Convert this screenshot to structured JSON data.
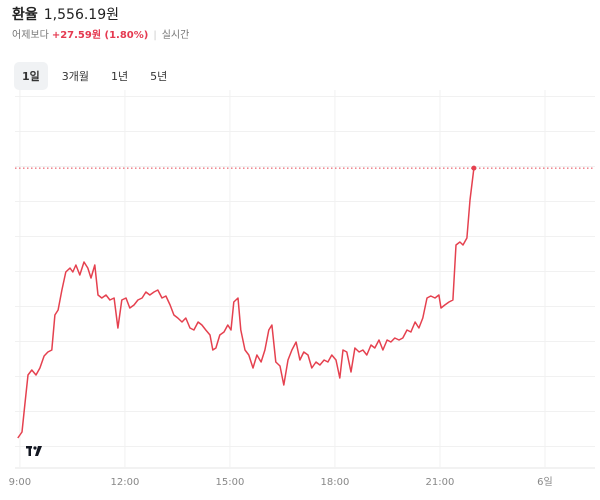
{
  "header": {
    "title": "환율",
    "price": "1,556.19원",
    "compare_label": "어제보다",
    "change": "+27.59원 (1.80%)",
    "realtime": "실시간"
  },
  "tabs": [
    "1일",
    "3개월",
    "1년",
    "5년"
  ],
  "chart_data": {
    "type": "line",
    "color": "#e5414f",
    "grid": true,
    "xlim": [
      8.86,
      25.43
    ],
    "ylim": [
      1528,
      1564
    ],
    "xticks": [
      {
        "value": 9,
        "label": "9:00"
      },
      {
        "value": 12,
        "label": "12:00"
      },
      {
        "value": 15,
        "label": "15:00"
      },
      {
        "value": 18,
        "label": "18:00"
      },
      {
        "value": 21,
        "label": "21:00"
      },
      {
        "value": 24,
        "label": "6일"
      }
    ],
    "x": [
      8.94,
      9.06,
      9.14,
      9.23,
      9.34,
      9.46,
      9.57,
      9.69,
      9.8,
      9.91,
      10.0,
      10.09,
      10.2,
      10.31,
      10.43,
      10.51,
      10.6,
      10.71,
      10.83,
      10.94,
      11.03,
      11.14,
      11.23,
      11.34,
      11.46,
      11.57,
      11.69,
      11.8,
      11.91,
      12.03,
      12.14,
      12.26,
      12.37,
      12.49,
      12.6,
      12.71,
      12.83,
      12.94,
      13.06,
      13.17,
      13.29,
      13.4,
      13.51,
      13.63,
      13.74,
      13.86,
      13.97,
      14.09,
      14.2,
      14.31,
      14.43,
      14.51,
      14.6,
      14.71,
      14.83,
      14.94,
      15.03,
      15.11,
      15.23,
      15.31,
      15.43,
      15.54,
      15.66,
      15.77,
      15.89,
      16.0,
      16.11,
      16.2,
      16.31,
      16.43,
      16.54,
      16.66,
      16.77,
      16.89,
      17.0,
      17.11,
      17.23,
      17.34,
      17.46,
      17.57,
      17.69,
      17.8,
      17.91,
      18.03,
      18.14,
      18.23,
      18.34,
      18.46,
      18.57,
      18.69,
      18.8,
      18.91,
      19.03,
      19.14,
      19.26,
      19.37,
      19.49,
      19.6,
      19.71,
      19.83,
      19.94,
      20.06,
      20.17,
      20.29,
      20.4,
      20.51,
      20.63,
      20.74,
      20.86,
      20.97,
      21.03,
      21.14,
      21.26,
      21.37,
      21.46,
      21.57,
      21.66,
      21.77,
      21.86,
      21.97
    ],
    "values": [
      1529.2,
      1529.8,
      1532.5,
      1535.5,
      1536.0,
      1535.5,
      1536.2,
      1537.4,
      1537.8,
      1538.0,
      1541.5,
      1542.0,
      1544.0,
      1545.8,
      1546.2,
      1545.8,
      1546.5,
      1545.5,
      1546.8,
      1546.2,
      1545.2,
      1546.5,
      1543.5,
      1543.2,
      1543.5,
      1543.0,
      1543.2,
      1540.2,
      1543.0,
      1543.2,
      1542.2,
      1542.5,
      1543.0,
      1543.2,
      1543.8,
      1543.5,
      1543.8,
      1544.0,
      1543.2,
      1543.4,
      1542.5,
      1541.5,
      1541.2,
      1540.8,
      1541.2,
      1540.2,
      1540.0,
      1540.8,
      1540.5,
      1540.0,
      1539.5,
      1538.0,
      1538.2,
      1539.5,
      1539.8,
      1540.5,
      1540.0,
      1542.8,
      1543.2,
      1540.0,
      1538.0,
      1537.5,
      1536.2,
      1537.5,
      1536.8,
      1538.0,
      1540.0,
      1540.5,
      1536.8,
      1536.4,
      1534.5,
      1537.0,
      1538.0,
      1538.8,
      1537.0,
      1537.8,
      1537.5,
      1536.2,
      1536.8,
      1536.5,
      1537.0,
      1536.8,
      1537.5,
      1537.0,
      1535.2,
      1538.0,
      1537.8,
      1535.8,
      1538.2,
      1537.8,
      1538.0,
      1537.5,
      1538.5,
      1538.2,
      1539.0,
      1538.0,
      1539.0,
      1538.8,
      1539.2,
      1539.0,
      1539.2,
      1540.0,
      1539.8,
      1540.8,
      1540.2,
      1541.2,
      1543.2,
      1543.4,
      1543.2,
      1543.5,
      1542.2,
      1542.5,
      1542.8,
      1543.0,
      1548.5,
      1548.8,
      1548.5,
      1549.2,
      1553.0,
      1556.19
    ]
  }
}
